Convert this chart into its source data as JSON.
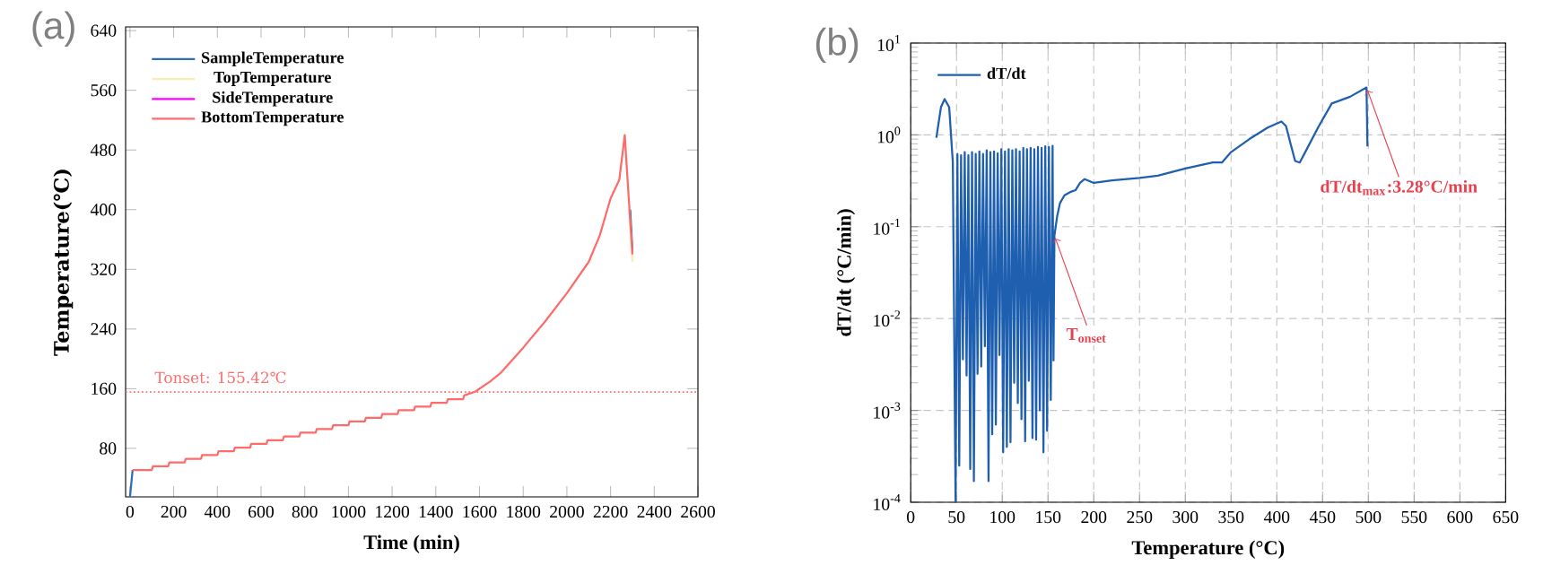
{
  "chart_data": [
    {
      "type": "line",
      "title": "(a)",
      "xlabel": "Time (min)",
      "ylabel": "Temperature(℃)",
      "legend": "top left",
      "xlim": [
        -20,
        2600
      ],
      "ylim": [
        15,
        645
      ],
      "xticks": [
        0,
        200,
        400,
        600,
        800,
        1000,
        1200,
        1400,
        1600,
        1800,
        2000,
        2200,
        2400,
        2600
      ],
      "yticks": [
        80,
        160,
        240,
        320,
        400,
        480,
        560,
        640
      ],
      "x": [
        12,
        100,
        105,
        175,
        180,
        250,
        255,
        325,
        330,
        400,
        405,
        475,
        480,
        550,
        555,
        625,
        630,
        700,
        705,
        775,
        780,
        850,
        855,
        925,
        930,
        1000,
        1005,
        1075,
        1080,
        1150,
        1155,
        1225,
        1230,
        1300,
        1305,
        1375,
        1380,
        1450,
        1455,
        1525,
        1530,
        1580,
        1650,
        1700,
        1800,
        1900,
        2000,
        2100,
        2150,
        2200,
        2240,
        2265,
        2280,
        2300
      ],
      "series": [
        {
          "name": "SampleTemperature",
          "color": "#2f6db5",
          "x": [
            0,
            12,
            2280,
            2290,
            2300
          ],
          "values": [
            15,
            51,
            null,
            400,
            345
          ]
        },
        {
          "name": "TopTemperature",
          "color": "#f5eeb0",
          "x": [
            2285,
            2300
          ],
          "values": [
            400,
            330
          ]
        },
        {
          "name": "SideTemperature",
          "color": "#ff00ff",
          "values": [
            null,
            null,
            null,
            null,
            null,
            null,
            null,
            null,
            null,
            null,
            null,
            null,
            null,
            null,
            null,
            null,
            null,
            null,
            null,
            null,
            null,
            null,
            null,
            null,
            null,
            null,
            null,
            null,
            null,
            null,
            null,
            null,
            null,
            null,
            null,
            null,
            null,
            null,
            null,
            null,
            null,
            null,
            null,
            null,
            null,
            null,
            null,
            null,
            null,
            null,
            null,
            null,
            null,
            null
          ]
        },
        {
          "name": "BottomTemperature",
          "color": "#ff6b6b",
          "values": [
            51,
            51,
            56,
            56,
            61,
            61,
            66,
            66,
            71,
            71,
            76,
            76,
            81,
            81,
            86,
            86,
            91,
            91,
            96,
            96,
            101,
            101,
            106,
            106,
            111,
            111,
            116,
            116,
            121,
            121,
            126,
            126,
            131,
            131,
            136,
            136,
            141,
            141,
            146,
            146,
            151,
            156,
            170,
            182,
            215,
            250,
            288,
            330,
            365,
            415,
            440,
            500,
            430,
            340
          ]
        }
      ],
      "ref_lines": [
        {
          "axis": "y",
          "value": 155.42,
          "label": "Tonset: 155.42℃",
          "color": "#ff6b6b",
          "line_style": "dotted"
        }
      ]
    },
    {
      "type": "line",
      "title": "(b)",
      "xlabel": "Temperature (°C)",
      "ylabel": "dT/dt (°C/min)",
      "legend": "top left",
      "log": "y",
      "grid": true,
      "xlim": [
        0,
        650
      ],
      "ylim": [
        0.0001,
        10
      ],
      "xticks": [
        0,
        50,
        100,
        150,
        200,
        250,
        300,
        350,
        400,
        450,
        500,
        550,
        600,
        650
      ],
      "yticks": [
        {
          "value": 0.0001,
          "label": "10$^{-4}$"
        },
        {
          "value": 0.001,
          "label": "10$^{-3}$"
        },
        {
          "value": 0.01,
          "label": "10$^{-2}$"
        },
        {
          "value": 0.1,
          "label": "10$^{-1}$"
        },
        {
          "value": 1,
          "label": "10$^{0}$"
        },
        {
          "value": 10,
          "label": "10$^{1}$"
        }
      ],
      "x": [
        28,
        33,
        37,
        42,
        46,
        49,
        51,
        53,
        55,
        57,
        59,
        61,
        63,
        65,
        67,
        69,
        71,
        73,
        75,
        77,
        79,
        81,
        83,
        85,
        87,
        89,
        91,
        93,
        95,
        97,
        99,
        101,
        103,
        105,
        107,
        109,
        111,
        113,
        115,
        117,
        119,
        121,
        123,
        125,
        127,
        129,
        131,
        133,
        135,
        137,
        139,
        141,
        143,
        145,
        147,
        149,
        151,
        153,
        155,
        156,
        157,
        160,
        163,
        168,
        175,
        180,
        185,
        190,
        200,
        220,
        250,
        270,
        300,
        330,
        340,
        350,
        370,
        390,
        405,
        410,
        415,
        420,
        425,
        430,
        445,
        460,
        480,
        498,
        499
      ],
      "series": [
        {
          "name": "dT/dt",
          "color": "#1f5fb0",
          "values": [
            0.93,
            2.0,
            2.45,
            2.0,
            0.5,
            0.0001,
            0.62,
            0.00025,
            0.6,
            0.0036,
            0.65,
            0.0024,
            0.6,
            0.00023,
            0.65,
            0.00017,
            0.62,
            0.0025,
            0.66,
            0.003,
            0.62,
            0.005,
            0.68,
            0.00017,
            0.65,
            0.00055,
            0.66,
            0.0007,
            0.63,
            0.004,
            0.7,
            0.00035,
            0.66,
            0.0004,
            0.7,
            0.00045,
            0.68,
            0.002,
            0.7,
            0.0012,
            0.66,
            0.0008,
            0.72,
            0.00046,
            0.7,
            0.0021,
            0.72,
            0.0005,
            0.7,
            0.00048,
            0.74,
            0.001,
            0.72,
            0.00035,
            0.75,
            0.0006,
            0.74,
            0.0013,
            0.76,
            0.0035,
            0.08,
            0.13,
            0.18,
            0.22,
            0.24,
            0.25,
            0.3,
            0.33,
            0.3,
            0.32,
            0.34,
            0.36,
            0.43,
            0.5,
            0.5,
            0.65,
            0.9,
            1.2,
            1.4,
            1.25,
            0.8,
            0.52,
            0.5,
            0.62,
            1.2,
            2.2,
            2.6,
            3.28,
            0.75
          ]
        }
      ],
      "annotations": [
        {
          "text": "T$_{onset}$",
          "x": 157,
          "y": 0.08
        },
        {
          "text": "dT/dt$_{max}$:3.28°C/min",
          "x": 498,
          "y": 3.28
        }
      ]
    }
  ]
}
